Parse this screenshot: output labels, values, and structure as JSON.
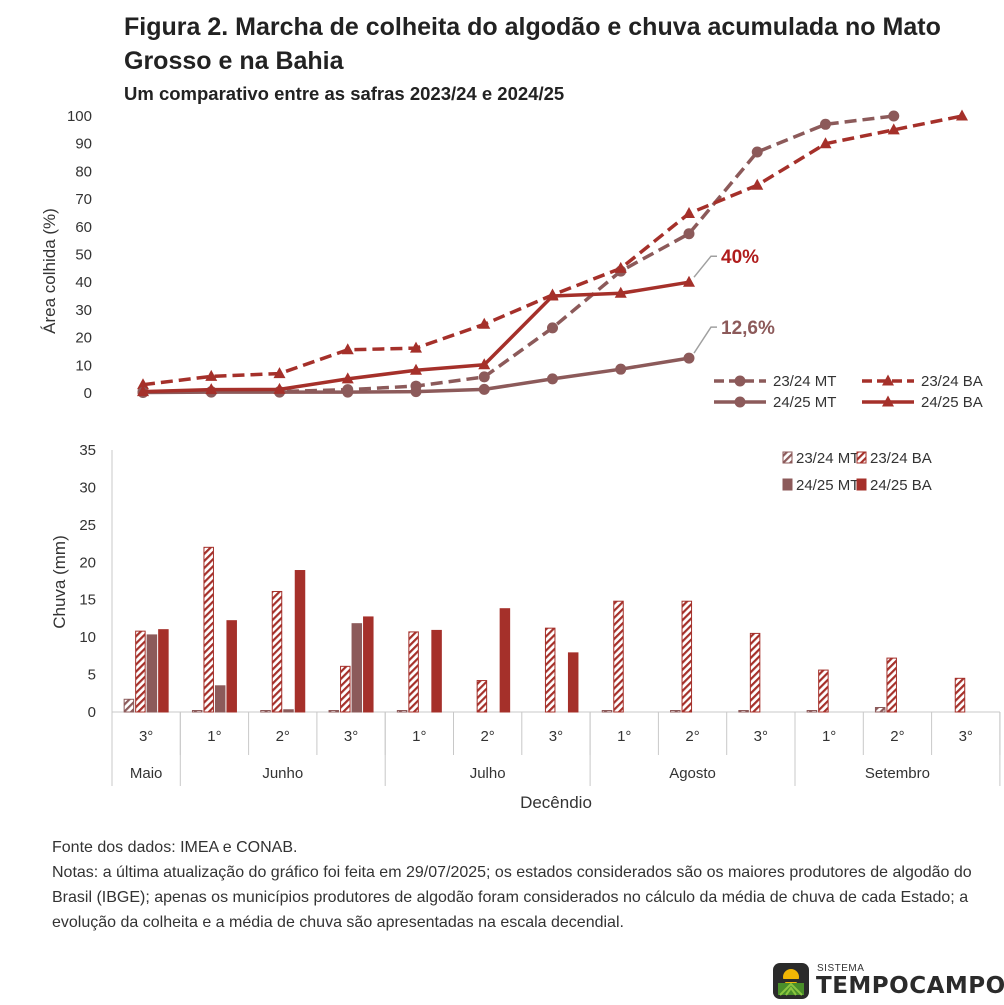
{
  "figure": {
    "title": "Figura 2. Marcha de colheita do algodão e chuva acumulada no Mato Grosso e na Bahia",
    "subtitle": "Um comparativo entre as safras 2023/24 e 2024/25"
  },
  "chart_data": [
    {
      "type": "line",
      "ylabel": "Área colhida (%)",
      "ylim": [
        0,
        100
      ],
      "yticks": [
        0,
        10,
        20,
        30,
        40,
        50,
        60,
        70,
        80,
        90,
        100
      ],
      "categories": [
        "Maio 3°",
        "Junho 1°",
        "Junho 2°",
        "Junho 3°",
        "Julho 1°",
        "Julho 2°",
        "Julho 3°",
        "Agosto 1°",
        "Agosto 2°",
        "Agosto 3°",
        "Setembro 1°",
        "Setembro 2°",
        "Setembro 3°"
      ],
      "series": [
        {
          "name": "23/24 MT",
          "color": "#8c5a5a",
          "style": "dashed",
          "marker": "circle",
          "values": [
            0.3,
            0.5,
            0.5,
            1.2,
            2.5,
            5.8,
            23.5,
            44,
            57.5,
            87,
            97,
            100,
            null
          ]
        },
        {
          "name": "23/24 BA",
          "color": "#a5302a",
          "style": "dashed",
          "marker": "triangle",
          "values": [
            3,
            6,
            7,
            15.6,
            16.2,
            24.8,
            35.4,
            45,
            64.8,
            75,
            90,
            95,
            100
          ]
        },
        {
          "name": "24/25 MT",
          "color": "#8c5a5a",
          "style": "solid",
          "marker": "circle",
          "values": [
            0.2,
            0.3,
            0.3,
            0.3,
            0.5,
            1.3,
            5.1,
            8.6,
            12.6,
            null,
            null,
            null,
            null
          ]
        },
        {
          "name": "24/25 BA",
          "color": "#a5302a",
          "style": "solid",
          "marker": "triangle",
          "values": [
            0.5,
            1.2,
            1.3,
            5.1,
            8.2,
            10.2,
            35,
            36,
            40,
            null,
            null,
            null,
            null
          ]
        }
      ],
      "annotations": [
        {
          "text": "40%",
          "series": "24/25 BA",
          "color": "#b01c1c"
        },
        {
          "text": "12,6%",
          "series": "24/25 MT",
          "color": "#8c5a5a"
        }
      ],
      "legend": "bottom-right"
    },
    {
      "type": "bar",
      "ylabel": "Chuva (mm)",
      "xlabel": "Decêndio",
      "ylim": [
        0,
        35
      ],
      "yticks": [
        0,
        5,
        10,
        15,
        20,
        25,
        30,
        35
      ],
      "tick_labels": [
        "3°",
        "1°",
        "2°",
        "3°",
        "1°",
        "2°",
        "3°",
        "1°",
        "2°",
        "3°",
        "1°",
        "2°",
        "3°"
      ],
      "months": [
        {
          "label": "Maio",
          "span": 1
        },
        {
          "label": "Junho",
          "span": 3
        },
        {
          "label": "Julho",
          "span": 3
        },
        {
          "label": "Agosto",
          "span": 3
        },
        {
          "label": "Setembro",
          "span": 3
        }
      ],
      "series": [
        {
          "name": "23/24 MT",
          "fill": "hatched",
          "color": "#8c5a5a",
          "values": [
            1.7,
            0.2,
            0.2,
            0.2,
            0.2,
            0,
            0,
            0.2,
            0.2,
            0.2,
            0.2,
            0.6,
            0
          ]
        },
        {
          "name": "23/24 BA",
          "fill": "hatched",
          "color": "#a5302a",
          "values": [
            10.8,
            22,
            16.1,
            6.1,
            10.7,
            4.2,
            11.2,
            14.8,
            14.8,
            10.5,
            5.6,
            7.2,
            4.5
          ]
        },
        {
          "name": "24/25 MT",
          "fill": "solid",
          "color": "#8c5a5a",
          "values": [
            10.3,
            3.5,
            0.3,
            11.8,
            0,
            0,
            0,
            0,
            0,
            0,
            0,
            0,
            0
          ]
        },
        {
          "name": "24/25 BA",
          "fill": "solid",
          "color": "#a5302a",
          "values": [
            11,
            12.2,
            18.9,
            12.7,
            10.9,
            13.8,
            7.9,
            0,
            0,
            0,
            0,
            0,
            0
          ]
        }
      ],
      "legend": "top-right"
    }
  ],
  "notes": {
    "source": "Fonte dos dados: IMEA e CONAB.",
    "text": "Notas: a última atualização do gráfico foi feita em 29/07/2025; os estados considerados são os maiores produtores de algodão do Brasil (IBGE); apenas os municípios produtores de algodão foram considerados no cálculo da média de chuva de cada Estado; a evolução da colheita e a média de chuva são apresentadas na escala decendial."
  },
  "logo": {
    "small": "SISTEMA",
    "brand": "TEMPOCAMPO"
  }
}
